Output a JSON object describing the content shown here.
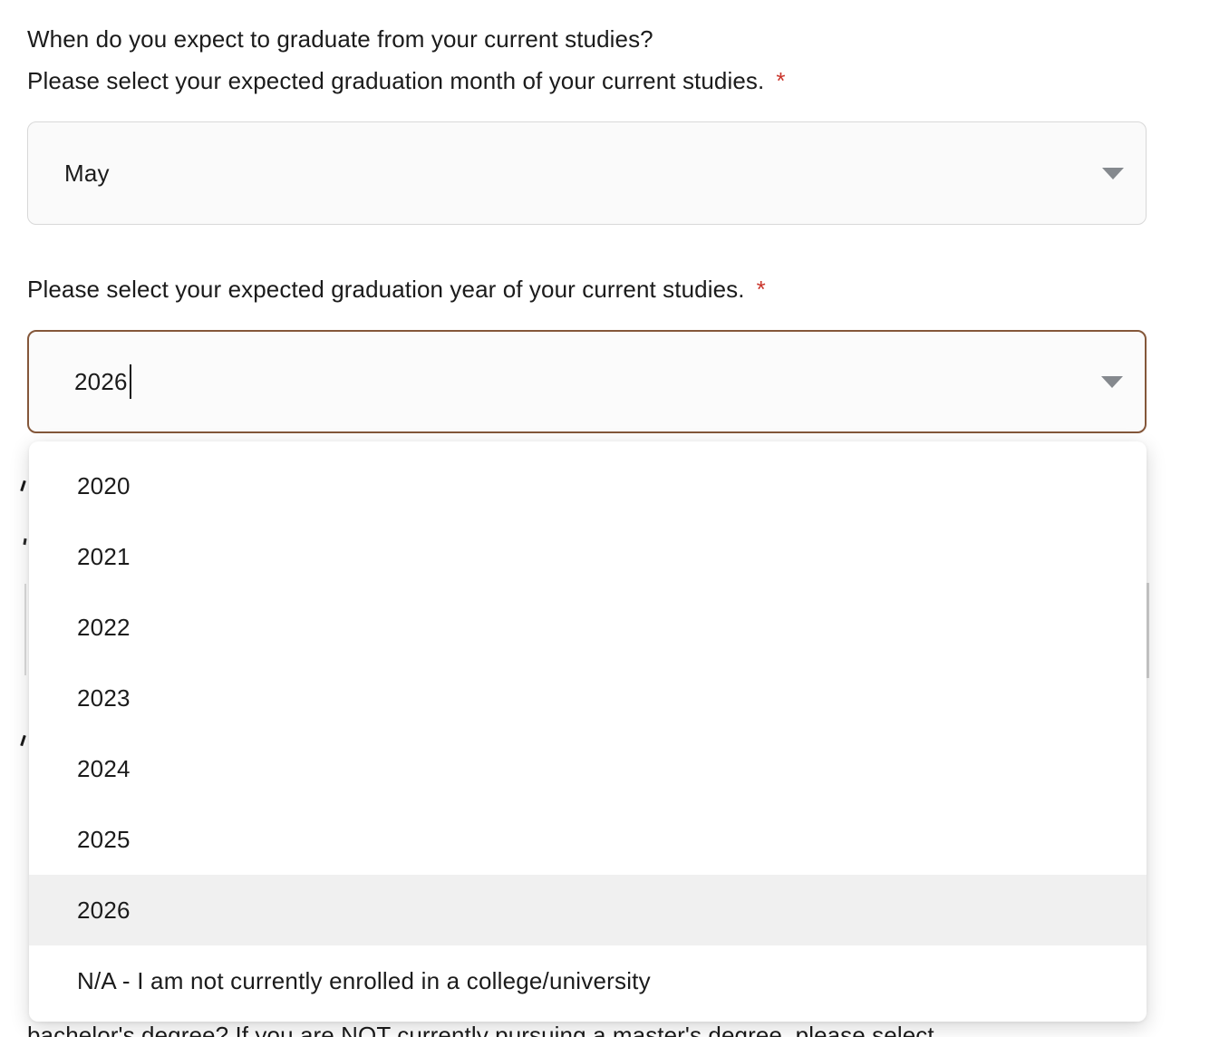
{
  "questions": {
    "month": {
      "line1": "When do you expect to graduate from your current studies?",
      "line2": "Please select your expected graduation month of your current studies.",
      "required_marker": "*",
      "value": "May"
    },
    "year": {
      "label": "Please select your expected graduation year of your current studies.",
      "required_marker": "*",
      "value": "2026"
    }
  },
  "dropdown": {
    "options": [
      "2020",
      "2021",
      "2022",
      "2023",
      "2024",
      "2025",
      "2026",
      "N/A - I am not currently enrolled in a college/university"
    ],
    "highlighted": "2026",
    "highlighted_index": 6
  },
  "background_text": {
    "partial_line": "bachelor's degree? If you are NOT currently pursuing a master's degree, please select"
  },
  "icons": {
    "dropdown_arrow": "chevron-down"
  },
  "colors": {
    "focus_border": "#84573a",
    "required_red": "#ca352b",
    "highlight_row": "#f0f0f0",
    "field_background": "#fafafa",
    "field_border": "#d8d8d8",
    "arrow_gray": "#85898e",
    "text": "#1b1b1b"
  }
}
